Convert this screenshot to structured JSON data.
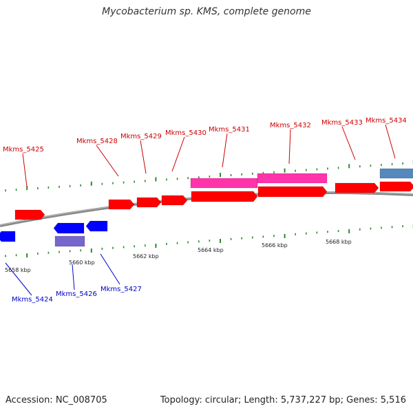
{
  "title": "Mycobacterium sp. KMS, complete genome",
  "footer": {
    "accession": "Accession: NC_008705",
    "summary": "Topology: circular; Length: 5,737,227 bp; Genes: 5,516"
  },
  "colors": {
    "forward_cds": "#ff0000",
    "reverse_cds": "#0000ff",
    "forward_label": "#cc0000",
    "reverse_label": "#0000cc",
    "rrna_forward": "#ff33aa",
    "reverse_other": "#7766cc",
    "forward_other": "#5588bb",
    "backbone": "#888888",
    "ticks": "#2a8a2a"
  },
  "scale_labels": [
    "5658 kbp",
    "5660 kbp",
    "5662 kbp",
    "5664 kbp",
    "5666 kbp",
    "5668 kbp"
  ],
  "forward_labels": [
    "Mkms_5425",
    "Mkms_5428",
    "Mkms_5429",
    "Mkms_5430",
    "Mkms_5431",
    "Mkms_5432",
    "Mkms_5433",
    "Mkms_5434"
  ],
  "reverse_labels": [
    "Mkms_5424",
    "Mkms_5426",
    "Mkms_5427"
  ]
}
